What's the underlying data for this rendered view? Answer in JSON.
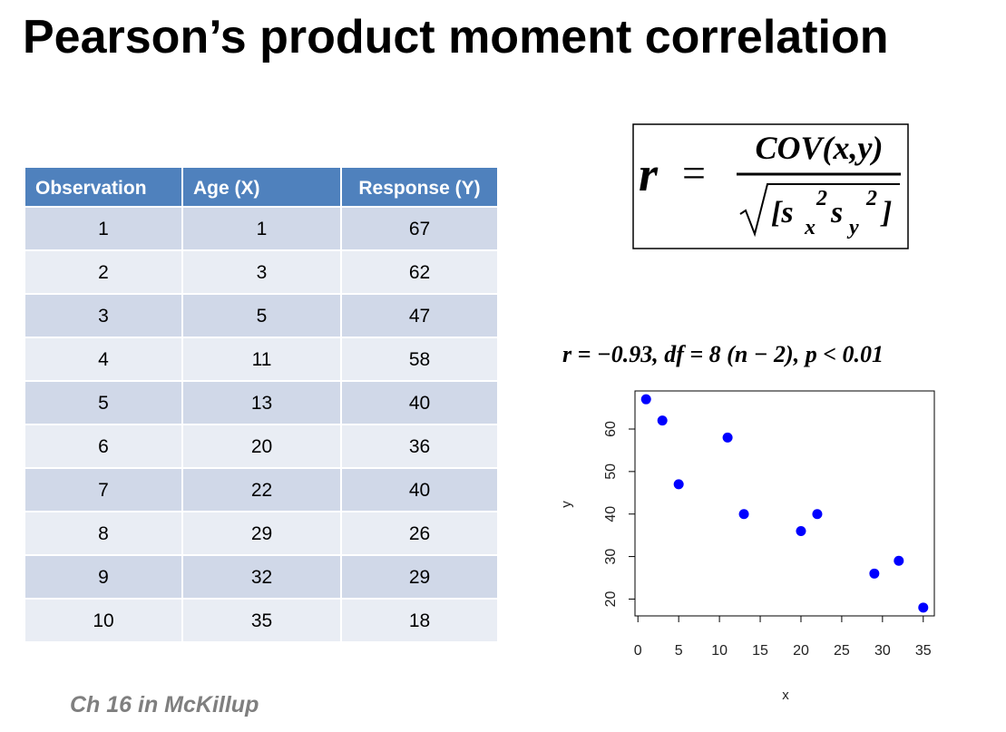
{
  "title": "Pearson’s product moment correlation",
  "table": {
    "header": [
      "Observation",
      "Age (X)",
      "Response (Y)"
    ],
    "rows": [
      [
        1,
        1,
        67
      ],
      [
        2,
        3,
        62
      ],
      [
        3,
        5,
        47
      ],
      [
        4,
        11,
        58
      ],
      [
        5,
        13,
        40
      ],
      [
        6,
        20,
        36
      ],
      [
        7,
        22,
        40
      ],
      [
        8,
        29,
        26
      ],
      [
        9,
        32,
        29
      ],
      [
        10,
        35,
        18
      ]
    ]
  },
  "formula": {
    "lhs": "r",
    "equals": "=",
    "numerator": "COV(x,y)",
    "denominator": [
      "[s",
      "x",
      "2",
      "s",
      "y",
      "2",
      "]"
    ]
  },
  "statistic": "r = −0.93, df = 8 (n − 2), p < 0.01",
  "chart_data": {
    "type": "scatter",
    "xlabel": "x",
    "ylabel": "y",
    "color": "#0000ff",
    "series": [
      {
        "x": [
          1,
          3,
          5,
          11,
          13,
          20,
          22,
          29,
          32,
          35
        ],
        "values": [
          67,
          62,
          47,
          58,
          40,
          36,
          40,
          26,
          29,
          18
        ]
      }
    ],
    "xlim": [
      -0.36,
      36.36
    ],
    "ylim": [
      16.04,
      68.96
    ],
    "xticks": [
      0,
      5,
      10,
      15,
      20,
      25,
      30,
      35
    ],
    "yticks": [
      20,
      30,
      40,
      50,
      60
    ]
  },
  "footer": "Ch 16 in McKillup"
}
